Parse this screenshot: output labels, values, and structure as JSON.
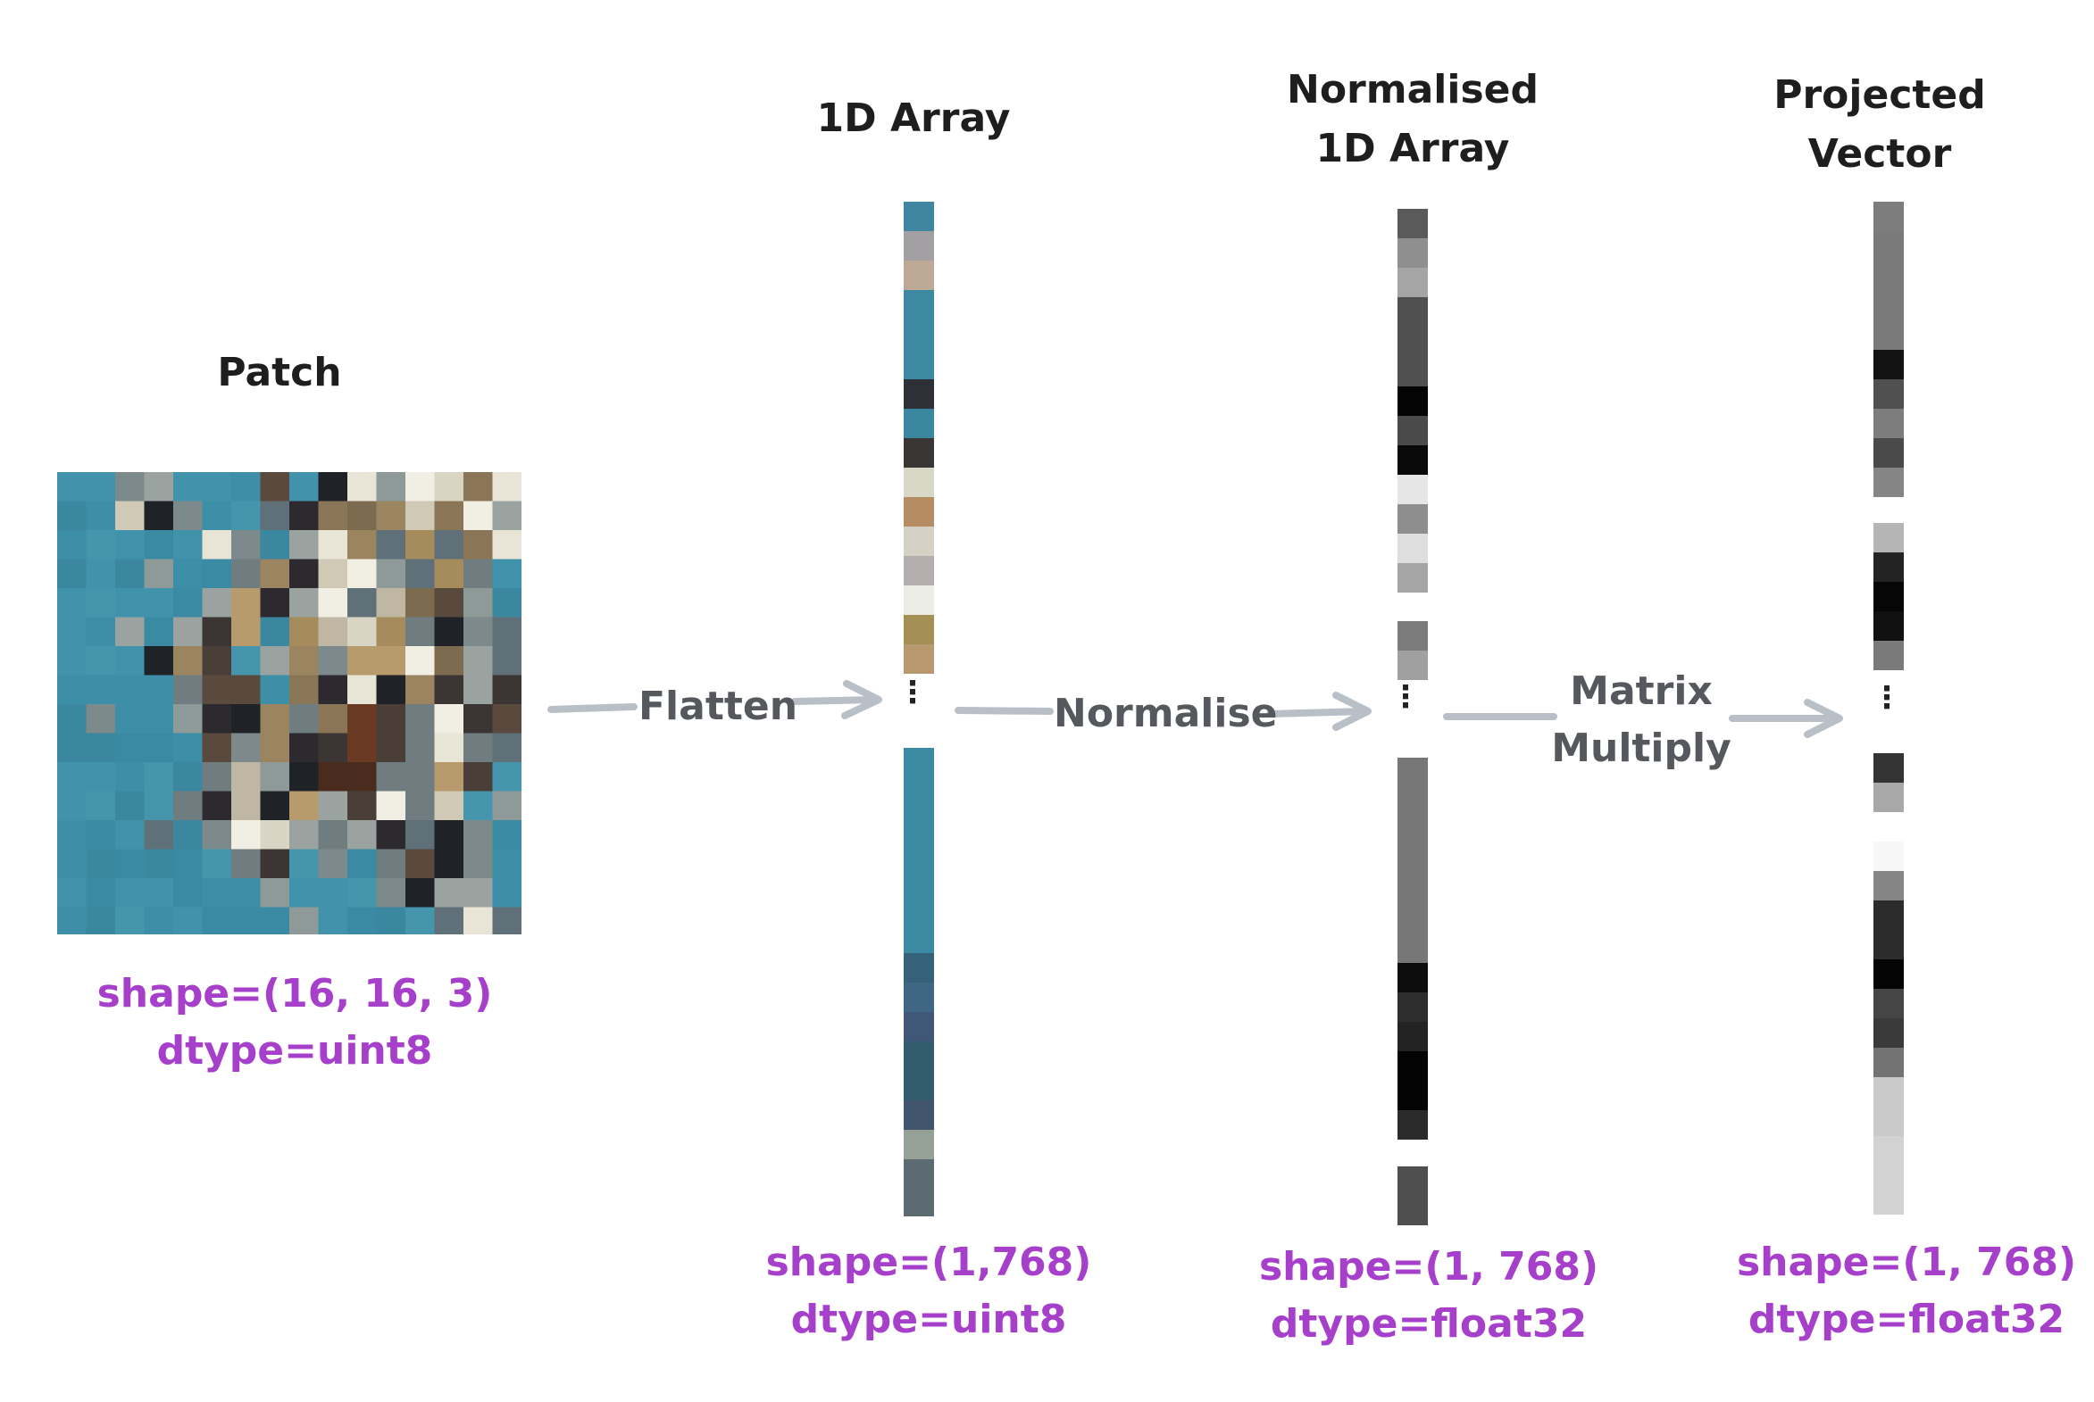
{
  "diagram": {
    "patch": {
      "title": "Patch",
      "shape": "shape=(16, 16, 3)",
      "dtype": "dtype=uint8"
    },
    "array_1d": {
      "title": "1D Array",
      "shape": "shape=(1,768)",
      "dtype": "dtype=uint8"
    },
    "normalised": {
      "title": "Normalised\n1D Array",
      "shape": "shape=(1, 768)",
      "dtype": "dtype=float32"
    },
    "projected": {
      "title": "Projected\nVector",
      "shape": "shape=(1, 768)",
      "dtype": "dtype=float32"
    },
    "steps": {
      "flatten": "Flatten",
      "normalise": "Normalise",
      "matrix_multiply_line1": "Matrix",
      "matrix_multiply_line2": "Multiply"
    },
    "ellipsis": "⋮"
  },
  "colors": {
    "title": "#1e1e1e",
    "info": "#a63fc9",
    "arrow": "#b8bfc6",
    "step_label": "#55585c",
    "patch_base": "#3d8fa8"
  }
}
